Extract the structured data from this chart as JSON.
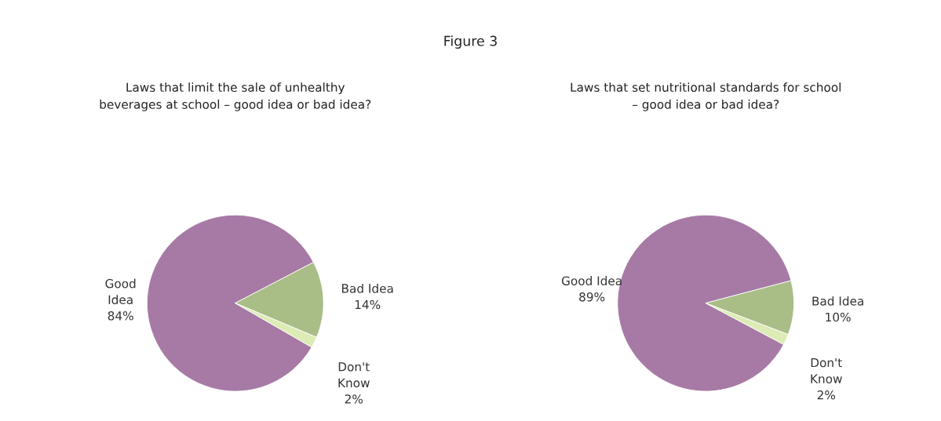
{
  "chart_data": [
    {
      "type": "pie",
      "title": "Laws that limit the sale of unhealthy\nbeverages at school – good idea or bad idea?",
      "annotations": [
        "Figure 3"
      ],
      "categories": [
        "Good Idea",
        "Bad Idea",
        "Don't Know"
      ],
      "values": [
        84,
        14,
        2
      ],
      "value_labels": [
        "84%",
        "14%",
        "2%"
      ],
      "colors": [
        "#a77aa6",
        "#a9bd86",
        "#dcecb4"
      ]
    },
    {
      "type": "pie",
      "title": "Laws that set nutritional standards for school\n– good idea or bad idea?",
      "categories": [
        "Good Idea",
        "Bad Idea",
        "Don't Know"
      ],
      "values": [
        89,
        10,
        2
      ],
      "value_labels": [
        "89%",
        "10%",
        "2%"
      ],
      "colors": [
        "#a77aa6",
        "#a9bd86",
        "#dcecb4"
      ]
    }
  ]
}
